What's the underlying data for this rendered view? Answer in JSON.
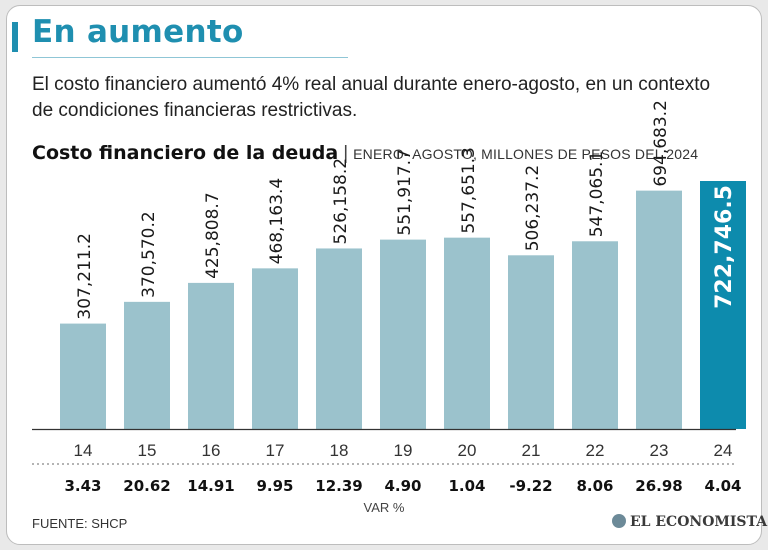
{
  "header": {
    "headline": "En aumento",
    "lede": "El costo financiero aumentó 4% real anual durante enero-agosto, en un contexto de condiciones financieras restrictivas."
  },
  "chart_heading": {
    "title": "Costo financiero de la deuda",
    "separator": "|",
    "subtitle": "ENERO- AGOSTO, MILLONES DE PESOS DEL 2024"
  },
  "chart_data": {
    "type": "bar",
    "title": "Costo financiero de la deuda",
    "subtitle": "ENERO- AGOSTO, MILLONES DE PESOS DEL 2024",
    "categories": [
      "14",
      "15",
      "16",
      "17",
      "18",
      "19",
      "20",
      "21",
      "22",
      "23",
      "24"
    ],
    "values": [
      307211.2,
      370570.2,
      425808.7,
      468163.4,
      526158.2,
      551917.7,
      557651.3,
      506237.2,
      547065.1,
      694683.2,
      722746.5
    ],
    "value_labels": [
      "307,211.2",
      "370,570.2",
      "425,808.7",
      "468,163.4",
      "526,158.2",
      "551,917.7",
      "557,651.3",
      "506,237.2",
      "547,065.1",
      "694,683.2",
      "722,746.5"
    ],
    "var_pct": [
      "3.43",
      "20.62",
      "14.91",
      "9.95",
      "12.39",
      "4.90",
      "1.04",
      "-9.22",
      "8.06",
      "26.98",
      "4.04"
    ],
    "var_label": "VAR %",
    "highlight_index": 10,
    "ylim": [
      0,
      722746.5
    ],
    "grid": false,
    "colors": {
      "bar": "#9bc2cc",
      "highlight": "#0d8bad",
      "axis": "#333333",
      "dotted": "#888888"
    }
  },
  "footer": {
    "source": "FUENTE: SHCP",
    "brand": "EL ECONOMISTA"
  }
}
